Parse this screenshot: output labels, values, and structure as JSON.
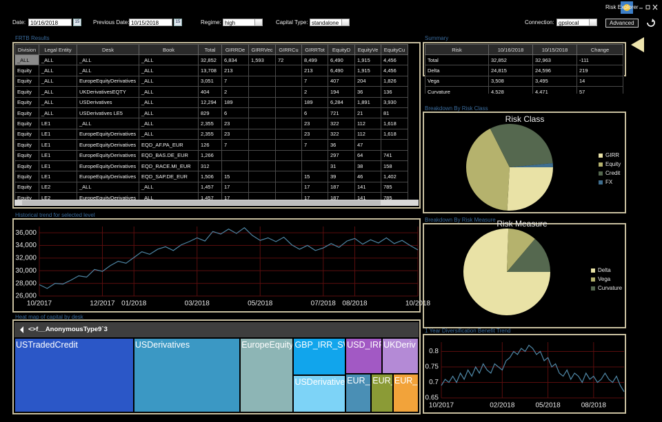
{
  "window": {
    "title": "Risk Explorer"
  },
  "toolbar": {
    "date_label": "Date:",
    "date": "10/16/2018",
    "calendar_icon": "15",
    "previous_date_label": "Previous Date:",
    "previous_date": "10/15/2018",
    "regime_label": "Regime:",
    "regime": "high",
    "capital_type_label": "Capital Type:",
    "capital_type": "standalone",
    "connection_label": "Connection:",
    "connection": "gpslocal",
    "advanced_button": "Advanced"
  },
  "frtb_results": {
    "title": "FRTB Results",
    "columns": [
      "Division",
      "Legal Entity",
      "Desk",
      "Book",
      "Total",
      "GIRRDe",
      "GIRRVec",
      "GIRRCu",
      "GIRRTot",
      "EquityD",
      "EquityVe",
      "EquityCu"
    ],
    "rows": [
      [
        "_ALL",
        "_ALL",
        "_ALL",
        "_ALL",
        "32,852",
        "6,834",
        "1,593",
        "72",
        "8,499",
        "6,490",
        "1,915",
        "4,456"
      ],
      [
        "Equity",
        "_ALL",
        "_ALL",
        "_ALL",
        "13,708",
        "213",
        null,
        null,
        "213",
        "6,490",
        "1,915",
        "4,456"
      ],
      [
        "Equity",
        "_ALL",
        "EuropeEquityDerivatives",
        "_ALL",
        "3,051",
        "7",
        null,
        null,
        "7",
        "407",
        "204",
        "1,826"
      ],
      [
        "Equity",
        "_ALL",
        "UKDerivativesEQTY",
        "_ALL",
        "404",
        "2",
        null,
        null,
        "2",
        "194",
        "36",
        "136"
      ],
      [
        "Equity",
        "_ALL",
        "USDerivatives",
        "_ALL",
        "12,294",
        "189",
        null,
        null,
        "189",
        "6,284",
        "1,891",
        "3,930"
      ],
      [
        "Equity",
        "_ALL",
        "USDerivatives LE5",
        "_ALL",
        "829",
        "6",
        null,
        null,
        "6",
        "721",
        "21",
        "81"
      ],
      [
        "Equity",
        "LE1",
        "_ALL",
        "_ALL",
        "2,355",
        "23",
        null,
        null,
        "23",
        "322",
        "112",
        "1,618"
      ],
      [
        "Equity",
        "LE1",
        "EuropeEquityDerivatives",
        "_ALL",
        "2,355",
        "23",
        null,
        null,
        "23",
        "322",
        "112",
        "1,618"
      ],
      [
        "Equity",
        "LE1",
        "EuropeEquityDerivatives",
        "EQD_AF.PA_EUR",
        "126",
        "7",
        null,
        null,
        "7",
        "36",
        "47",
        null
      ],
      [
        "Equity",
        "LE1",
        "EuropeEquityDerivatives",
        "EQD_BAS.DE_EUR",
        "1,266",
        null,
        null,
        null,
        null,
        "297",
        "64",
        "741"
      ],
      [
        "Equity",
        "LE1",
        "EuropeEquityDerivatives",
        "EQD_RACE.MI_EUR",
        "312",
        null,
        null,
        null,
        null,
        "31",
        "38",
        "158"
      ],
      [
        "Equity",
        "LE1",
        "EuropeEquityDerivatives",
        "EQD_SAP.DE_EUR",
        "1,506",
        "15",
        null,
        null,
        "15",
        "39",
        "46",
        "1,402"
      ],
      [
        "Equity",
        "LE2",
        "_ALL",
        "_ALL",
        "1,457",
        "17",
        null,
        null,
        "17",
        "187",
        "141",
        "785"
      ],
      [
        "Equity",
        "LE2",
        "EuropeEquityDerivatives",
        "_ALL",
        "1,457",
        "17",
        null,
        null,
        "17",
        "187",
        "141",
        "785"
      ]
    ]
  },
  "summary": {
    "title": "Summary",
    "columns": [
      "Risk",
      "10/16/2018",
      "10/15/2018",
      "Change"
    ],
    "rows": [
      [
        "Total",
        "32,852",
        "32,963",
        "-111"
      ],
      [
        "Delta",
        "24,815",
        "24,596",
        "219"
      ],
      [
        "Vega",
        "3,508",
        "3,495",
        "14"
      ],
      [
        "Curvature",
        "4,528",
        "4,471",
        "57"
      ]
    ]
  },
  "chart_data": [
    {
      "type": "pie",
      "panel_title": "Breakdown By Risk Class",
      "title": "Risk Class",
      "categories": [
        "GIRR",
        "Equity",
        "Credit",
        "FX"
      ],
      "values": [
        8499,
        13708,
        10145,
        500
      ],
      "colors": [
        "#e9e2a6",
        "#b5b26d",
        "#55684f",
        "#3f6e8f"
      ],
      "legend": "right"
    },
    {
      "type": "pie",
      "panel_title": "Breakdown By Risk Measure",
      "title": "Risk Measure",
      "categories": [
        "Delta",
        "Vega",
        "Curvature"
      ],
      "values": [
        24815,
        3508,
        4528
      ],
      "colors": [
        "#e9e2a6",
        "#b5b26d",
        "#55684f"
      ],
      "legend": "right"
    },
    {
      "type": "line",
      "panel_title": "Historical trend for selected level",
      "x": [
        "10/2017",
        "10/2017",
        "10/2017",
        "10/2017",
        "11/2017",
        "11/2017",
        "11/2017",
        "11/2017",
        "12/2017",
        "12/2017",
        "12/2017",
        "12/2017",
        "01/2018",
        "01/2018",
        "01/2018",
        "01/2018",
        "02/2018",
        "02/2018",
        "02/2018",
        "02/2018",
        "03/2018",
        "03/2018",
        "03/2018",
        "03/2018",
        "04/2018",
        "04/2018",
        "04/2018",
        "04/2018",
        "05/2018",
        "05/2018",
        "05/2018",
        "05/2018",
        "06/2018",
        "06/2018",
        "06/2018",
        "06/2018",
        "07/2018",
        "07/2018",
        "07/2018",
        "07/2018",
        "08/2018",
        "08/2018",
        "08/2018",
        "08/2018",
        "09/2018",
        "09/2018",
        "09/2018",
        "09/2018",
        "10/2018"
      ],
      "values": [
        27800,
        27200,
        28000,
        27900,
        28500,
        29200,
        29000,
        30200,
        29900,
        30800,
        31500,
        31200,
        32100,
        33000,
        32600,
        33400,
        33800,
        33200,
        34100,
        34600,
        35200,
        34700,
        36200,
        35800,
        36600,
        35900,
        36800,
        35600,
        34800,
        35200,
        34600,
        35300,
        34100,
        33400,
        34000,
        33200,
        33600,
        34300,
        33700,
        34700,
        35100,
        34200,
        34900,
        34400,
        35200,
        34300,
        34800,
        34000,
        33300
      ],
      "color": "#4f87a6",
      "ylim": [
        26000,
        37000
      ],
      "yticks": [
        {
          "value": 26000,
          "label": "26,000"
        },
        {
          "value": 28000,
          "label": "28,000"
        },
        {
          "value": 30000,
          "label": "30,000"
        },
        {
          "value": 32000,
          "label": "32,000"
        },
        {
          "value": 34000,
          "label": "34,000"
        },
        {
          "value": 36000,
          "label": "36,000"
        }
      ],
      "xticks": [
        "10/2017",
        "12/2017",
        "01/2018",
        "03/2018",
        "05/2018",
        "07/2018",
        "08/2018",
        "10/2018"
      ],
      "grid": true,
      "grid_color": "#5a0e0e"
    },
    {
      "type": "treemap",
      "panel_title": "Heat map of capital by desk",
      "header": "<>f__AnonymousType9`3",
      "categories": [
        "USTradedCredit",
        "USDerivatives",
        "EuropeEquity",
        "GBP_IRR_SW",
        "USDerivative",
        "USD_IRR",
        "UKDeriv",
        "EUR_IRR_S",
        "EUR_IRR_S",
        "EUR_IRR_("
      ],
      "values": [
        17808,
        15900,
        7950,
        3900,
        3900,
        2600,
        2600,
        2000,
        1700,
        2000
      ],
      "colors": [
        "#2b57c7",
        "#3b98c4",
        "#8db5b5",
        "#11a5ec",
        "#7dd3f7",
        "#a259c4",
        "#b48ad6",
        "#4a8fb5",
        "#8b9b36",
        "#f2a33a"
      ]
    },
    {
      "type": "line",
      "panel_title": "1 Year Diversification Benefit Trend",
      "x": [
        "10/2017",
        "10/2017",
        "10/2017",
        "10/2017",
        "11/2017",
        "11/2017",
        "11/2017",
        "11/2017",
        "12/2017",
        "12/2017",
        "12/2017",
        "12/2017",
        "01/2018",
        "01/2018",
        "01/2018",
        "01/2018",
        "02/2018",
        "02/2018",
        "02/2018",
        "02/2018",
        "03/2018",
        "03/2018",
        "03/2018",
        "03/2018",
        "04/2018",
        "04/2018",
        "04/2018",
        "04/2018",
        "05/2018",
        "05/2018",
        "05/2018",
        "05/2018",
        "06/2018",
        "06/2018",
        "06/2018",
        "06/2018",
        "07/2018",
        "07/2018",
        "07/2018",
        "07/2018",
        "08/2018",
        "08/2018",
        "08/2018",
        "08/2018",
        "09/2018",
        "09/2018",
        "09/2018",
        "09/2018",
        "10/2018"
      ],
      "values": [
        0.69,
        0.71,
        0.7,
        0.72,
        0.7,
        0.73,
        0.71,
        0.74,
        0.72,
        0.75,
        0.73,
        0.76,
        0.74,
        0.73,
        0.76,
        0.75,
        0.74,
        0.77,
        0.78,
        0.8,
        0.79,
        0.81,
        0.8,
        0.82,
        0.81,
        0.79,
        0.8,
        0.77,
        0.78,
        0.75,
        0.76,
        0.73,
        0.72,
        0.74,
        0.71,
        0.73,
        0.72,
        0.7,
        0.73,
        0.71,
        0.72,
        0.7,
        0.71,
        0.73,
        0.71,
        0.7,
        0.72,
        0.69,
        0.67
      ],
      "color": "#4f87a6",
      "ylim": [
        0.65,
        0.83
      ],
      "yticks": [
        0.65,
        0.7,
        0.75,
        0.8
      ],
      "xticks": [
        "10/2017",
        "02/2018",
        "05/2018",
        "08/2018"
      ],
      "grid": true,
      "grid_color": "#5a0e0e"
    }
  ]
}
